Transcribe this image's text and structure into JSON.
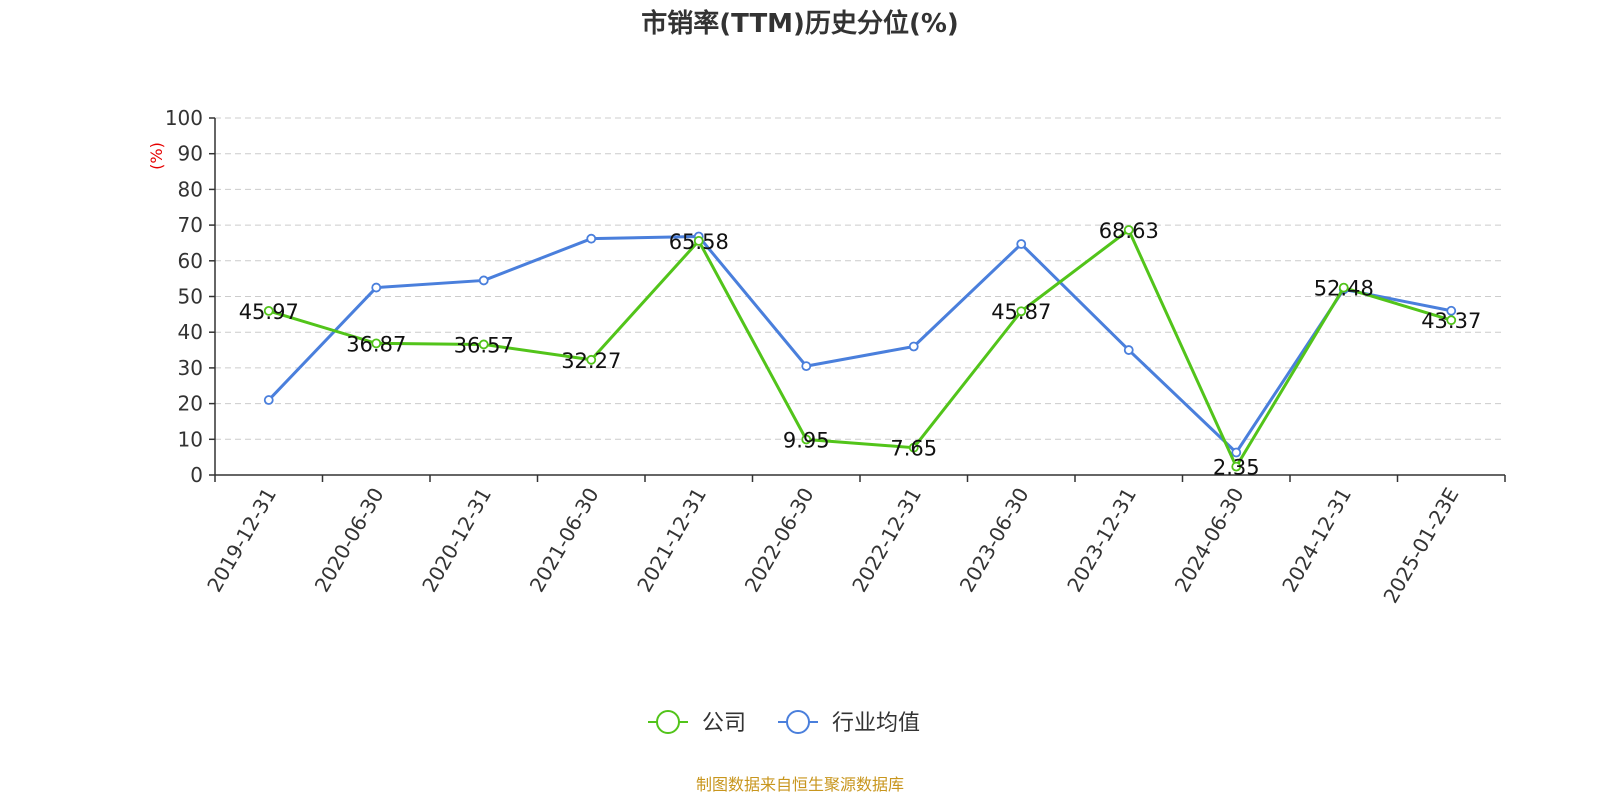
{
  "chart_data": {
    "type": "line",
    "title": "市销率(TTM)历史分位(%)",
    "unit_label": "(%)",
    "categories": [
      "2019-12-31",
      "2020-06-30",
      "2020-12-31",
      "2021-06-30",
      "2021-12-31",
      "2022-06-30",
      "2022-12-31",
      "2023-06-30",
      "2023-12-31",
      "2024-06-30",
      "2024-12-31",
      "2025-01-23E"
    ],
    "ylim": [
      0,
      100
    ],
    "yticks": [
      0,
      10,
      20,
      30,
      40,
      50,
      60,
      70,
      80,
      90,
      100
    ],
    "grid": true,
    "legend_position": "bottom-center",
    "series": [
      {
        "name": "公司",
        "color": "#52c41a",
        "values": [
          45.97,
          36.87,
          36.57,
          32.27,
          65.58,
          9.95,
          7.65,
          45.87,
          68.63,
          2.35,
          52.48,
          43.37
        ],
        "labels": [
          "45.97",
          "36.87",
          "36.57",
          "32.27",
          "65.58",
          "9.95",
          "7.65",
          "45.87",
          "68.63",
          "2.35",
          "52.48",
          "43.37"
        ]
      },
      {
        "name": "行业均值",
        "color": "#4a7fdc",
        "values": [
          21.0,
          52.5,
          54.5,
          66.2,
          66.8,
          30.5,
          36.0,
          64.7,
          35.0,
          6.3,
          52.0,
          46.0
        ]
      }
    ],
    "unit_color": "#e60000"
  },
  "footer": {
    "source": "制图数据来自恒生聚源数据库",
    "source_color": "#c8961e"
  }
}
